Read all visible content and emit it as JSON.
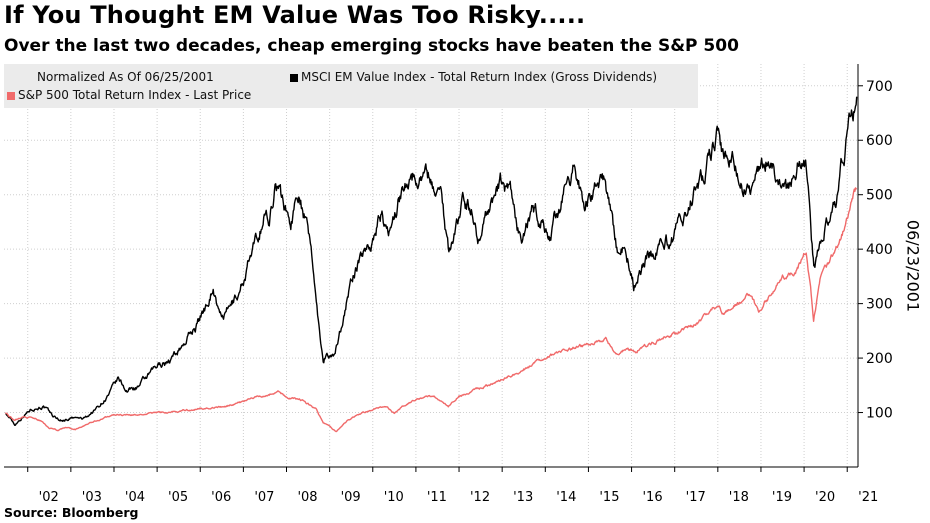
{
  "title": "If You Thought EM Value Was Too Risky.....",
  "subtitle": "Over the last two decades, cheap emerging stocks have beaten the S&P 500",
  "source": "Source: Bloomberg",
  "side_label": "06/23/2001",
  "legend": {
    "normalized": "Normalized As Of 06/25/2001",
    "series1": "MSCI EM Value Index - Total Return Index (Gross Dividends)",
    "series2": "S&P 500 Total Return Index - Last Price"
  },
  "colors": {
    "em": "#000000",
    "sp": "#f06a6a",
    "grid": "#cfcfcf",
    "legend_bg": "#ebebeb"
  },
  "chart_data": {
    "type": "line",
    "title": "If You Thought EM Value Was Too Risky.....",
    "subtitle": "Over the last two decades, cheap emerging stocks have beaten the S&P 500",
    "xlabel": "",
    "ylabel": "",
    "x_range": [
      2001.45,
      2021.25
    ],
    "ylim": [
      0,
      740
    ],
    "y_ticks": [
      100,
      200,
      300,
      400,
      500,
      600,
      700
    ],
    "x_ticks": [
      {
        "label": "'02",
        "x": 2002
      },
      {
        "label": "'03",
        "x": 2003
      },
      {
        "label": "'04",
        "x": 2004
      },
      {
        "label": "'05",
        "x": 2005
      },
      {
        "label": "'06",
        "x": 2006
      },
      {
        "label": "'07",
        "x": 2007
      },
      {
        "label": "'08",
        "x": 2008
      },
      {
        "label": "'09",
        "x": 2009
      },
      {
        "label": "'10",
        "x": 2010
      },
      {
        "label": "'11",
        "x": 2011
      },
      {
        "label": "'12",
        "x": 2012
      },
      {
        "label": "'13",
        "x": 2013
      },
      {
        "label": "'14",
        "x": 2014
      },
      {
        "label": "'15",
        "x": 2015
      },
      {
        "label": "'16",
        "x": 2016
      },
      {
        "label": "'17",
        "x": 2017
      },
      {
        "label": "'18",
        "x": 2018
      },
      {
        "label": "'19",
        "x": 2019
      },
      {
        "label": "'20",
        "x": 2020
      },
      {
        "label": "'21",
        "x": 2021
      }
    ],
    "grid": true,
    "legend": "top-left",
    "series": [
      {
        "name": "MSCI EM Value Index - Total Return Index (Gross Dividends)",
        "color": "#000000",
        "points": [
          [
            2001.48,
            100
          ],
          [
            2001.7,
            78
          ],
          [
            2001.9,
            95
          ],
          [
            2002.1,
            108
          ],
          [
            2002.35,
            112
          ],
          [
            2002.6,
            92
          ],
          [
            2002.8,
            85
          ],
          [
            2003.0,
            90
          ],
          [
            2003.3,
            88
          ],
          [
            2003.6,
            108
          ],
          [
            2003.9,
            135
          ],
          [
            2004.1,
            160
          ],
          [
            2004.3,
            140
          ],
          [
            2004.6,
            150
          ],
          [
            2004.9,
            175
          ],
          [
            2005.1,
            190
          ],
          [
            2005.35,
            200
          ],
          [
            2005.6,
            225
          ],
          [
            2005.9,
            260
          ],
          [
            2006.1,
            290
          ],
          [
            2006.3,
            335
          ],
          [
            2006.45,
            275
          ],
          [
            2006.6,
            280
          ],
          [
            2006.9,
            320
          ],
          [
            2007.1,
            370
          ],
          [
            2007.3,
            410
          ],
          [
            2007.5,
            470
          ],
          [
            2007.6,
            445
          ],
          [
            2007.75,
            530
          ],
          [
            2007.9,
            490
          ],
          [
            2008.1,
            450
          ],
          [
            2008.3,
            515
          ],
          [
            2008.45,
            450
          ],
          [
            2008.6,
            380
          ],
          [
            2008.75,
            260
          ],
          [
            2008.85,
            200
          ],
          [
            2008.95,
            210
          ],
          [
            2009.1,
            200
          ],
          [
            2009.3,
            270
          ],
          [
            2009.5,
            340
          ],
          [
            2009.75,
            390
          ],
          [
            2010.0,
            420
          ],
          [
            2010.2,
            465
          ],
          [
            2010.35,
            420
          ],
          [
            2010.6,
            490
          ],
          [
            2010.85,
            545
          ],
          [
            2011.0,
            530
          ],
          [
            2011.2,
            550
          ],
          [
            2011.4,
            520
          ],
          [
            2011.6,
            500
          ],
          [
            2011.75,
            400
          ],
          [
            2011.9,
            430
          ],
          [
            2012.1,
            490
          ],
          [
            2012.3,
            470
          ],
          [
            2012.45,
            420
          ],
          [
            2012.7,
            480
          ],
          [
            2013.0,
            520
          ],
          [
            2013.2,
            495
          ],
          [
            2013.45,
            410
          ],
          [
            2013.7,
            470
          ],
          [
            2013.9,
            455
          ],
          [
            2014.1,
            420
          ],
          [
            2014.3,
            470
          ],
          [
            2014.55,
            520
          ],
          [
            2014.7,
            550
          ],
          [
            2014.9,
            490
          ],
          [
            2015.1,
            500
          ],
          [
            2015.35,
            520
          ],
          [
            2015.5,
            470
          ],
          [
            2015.7,
            380
          ],
          [
            2015.85,
            410
          ],
          [
            2016.05,
            335
          ],
          [
            2016.3,
            380
          ],
          [
            2016.55,
            400
          ],
          [
            2016.8,
            420
          ],
          [
            2016.9,
            400
          ],
          [
            2017.1,
            440
          ],
          [
            2017.35,
            490
          ],
          [
            2017.6,
            520
          ],
          [
            2017.8,
            560
          ],
          [
            2018.0,
            625
          ],
          [
            2018.1,
            580
          ],
          [
            2018.35,
            570
          ],
          [
            2018.55,
            520
          ],
          [
            2018.8,
            500
          ],
          [
            2019.0,
            560
          ],
          [
            2019.2,
            575
          ],
          [
            2019.4,
            540
          ],
          [
            2019.6,
            510
          ],
          [
            2019.8,
            545
          ],
          [
            2019.95,
            570
          ],
          [
            2020.05,
            560
          ],
          [
            2020.2,
            390
          ],
          [
            2020.25,
            365
          ],
          [
            2020.4,
            420
          ],
          [
            2020.6,
            450
          ],
          [
            2020.75,
            470
          ],
          [
            2020.9,
            560
          ],
          [
            2021.0,
            600
          ],
          [
            2021.1,
            650
          ],
          [
            2021.15,
            660
          ],
          [
            2021.22,
            680
          ]
        ]
      },
      {
        "name": "S&P 500 Total Return Index - Last Price",
        "color": "#f06a6a",
        "points": [
          [
            2001.48,
            100
          ],
          [
            2001.7,
            85
          ],
          [
            2001.9,
            92
          ],
          [
            2002.1,
            90
          ],
          [
            2002.3,
            85
          ],
          [
            2002.5,
            72
          ],
          [
            2002.7,
            68
          ],
          [
            2002.9,
            72
          ],
          [
            2003.1,
            68
          ],
          [
            2003.4,
            80
          ],
          [
            2003.7,
            88
          ],
          [
            2004.0,
            96
          ],
          [
            2004.5,
            95
          ],
          [
            2005.0,
            100
          ],
          [
            2005.5,
            102
          ],
          [
            2006.0,
            108
          ],
          [
            2006.5,
            110
          ],
          [
            2007.0,
            120
          ],
          [
            2007.4,
            130
          ],
          [
            2007.8,
            138
          ],
          [
            2008.0,
            128
          ],
          [
            2008.4,
            122
          ],
          [
            2008.7,
            105
          ],
          [
            2008.85,
            80
          ],
          [
            2009.0,
            75
          ],
          [
            2009.15,
            65
          ],
          [
            2009.4,
            85
          ],
          [
            2009.7,
            98
          ],
          [
            2010.0,
            105
          ],
          [
            2010.3,
            112
          ],
          [
            2010.5,
            100
          ],
          [
            2010.9,
            120
          ],
          [
            2011.3,
            132
          ],
          [
            2011.6,
            122
          ],
          [
            2011.75,
            112
          ],
          [
            2012.0,
            130
          ],
          [
            2012.5,
            145
          ],
          [
            2013.0,
            160
          ],
          [
            2013.5,
            180
          ],
          [
            2014.0,
            200
          ],
          [
            2014.5,
            215
          ],
          [
            2015.0,
            225
          ],
          [
            2015.4,
            232
          ],
          [
            2015.65,
            208
          ],
          [
            2015.9,
            220
          ],
          [
            2016.1,
            212
          ],
          [
            2016.5,
            230
          ],
          [
            2017.0,
            245
          ],
          [
            2017.5,
            262
          ],
          [
            2018.0,
            298
          ],
          [
            2018.1,
            285
          ],
          [
            2018.5,
            305
          ],
          [
            2018.75,
            320
          ],
          [
            2018.95,
            278
          ],
          [
            2019.1,
            305
          ],
          [
            2019.5,
            345
          ],
          [
            2019.8,
            360
          ],
          [
            2020.05,
            400
          ],
          [
            2020.15,
            330
          ],
          [
            2020.22,
            270
          ],
          [
            2020.4,
            350
          ],
          [
            2020.6,
            380
          ],
          [
            2020.8,
            410
          ],
          [
            2020.9,
            430
          ],
          [
            2021.0,
            455
          ],
          [
            2021.1,
            490
          ],
          [
            2021.15,
            505
          ],
          [
            2021.22,
            510
          ]
        ]
      }
    ]
  }
}
